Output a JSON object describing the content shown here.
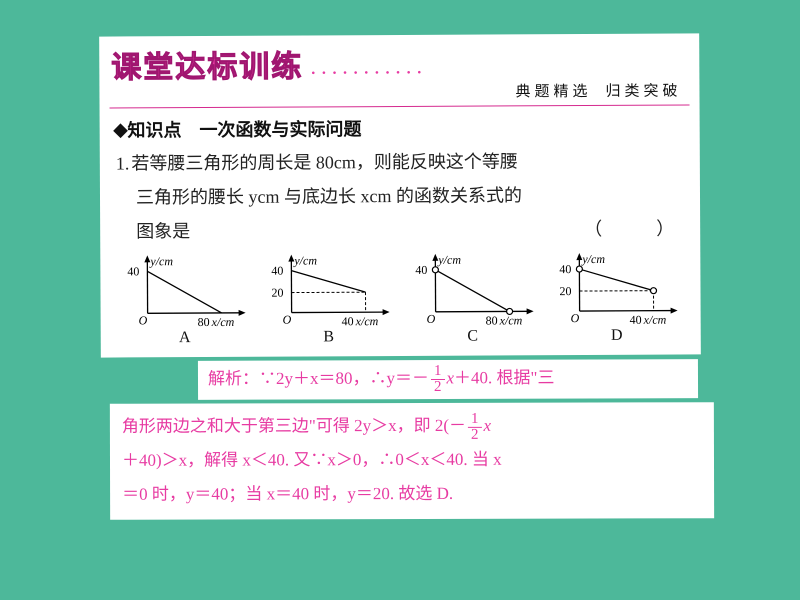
{
  "header": {
    "title": "课堂达标训练",
    "subtitle1": "典题精选",
    "subtitle2": "归类突破",
    "rule_color": "#d52a8f",
    "title_color": "#e73ba2"
  },
  "knowledge_point": {
    "diamond": "◆",
    "label": "知识点",
    "title": "一次函数与实际问题"
  },
  "question": {
    "num": "1.",
    "line1": "若等腰三角形的周长是 80cm，则能反映这个等腰",
    "line2": "三角形的腰长 ycm 与底边长 xcm 的函数关系式的",
    "line3": "图象是",
    "paren": "（　　）"
  },
  "charts": {
    "y_label": "y/cm",
    "x_label": "x/cm",
    "options": [
      {
        "id": "A",
        "ymax": "40",
        "xmax": "80",
        "ymid": null,
        "open_end": false,
        "open_start": false,
        "xmid": null
      },
      {
        "id": "B",
        "ymax": "40",
        "xmax": "40",
        "ymid": "20",
        "open_end": false,
        "open_start": false,
        "xmid": "40"
      },
      {
        "id": "C",
        "ymax": "40",
        "xmax": "80",
        "ymid": null,
        "open_end": true,
        "open_start": true,
        "xmid": null
      },
      {
        "id": "D",
        "ymax": "40",
        "xmax": "40",
        "ymid": "20",
        "open_end": true,
        "open_start": true,
        "xmid": "40"
      }
    ]
  },
  "solution": {
    "color": "#e73ba2",
    "line1_a": "解析：∵",
    "line1_b": "2y＋x＝80，∴y＝－",
    "line1_frac_n": "1",
    "line1_frac_d": "2",
    "line1_c": "x＋40. 根据\"三",
    "line2_a": "角形两边之和大于第三边\"可得 2y＞x，即 2(－",
    "line2_frac_n": "1",
    "line2_frac_d": "2",
    "line2_b": "x",
    "line3": "＋40)＞x，解得 x＜40. 又∵x＞0，∴0＜x＜40. 当 x",
    "line4": "＝0 时，y＝40；当 x＝40 时，y＝20. 故选 D."
  }
}
